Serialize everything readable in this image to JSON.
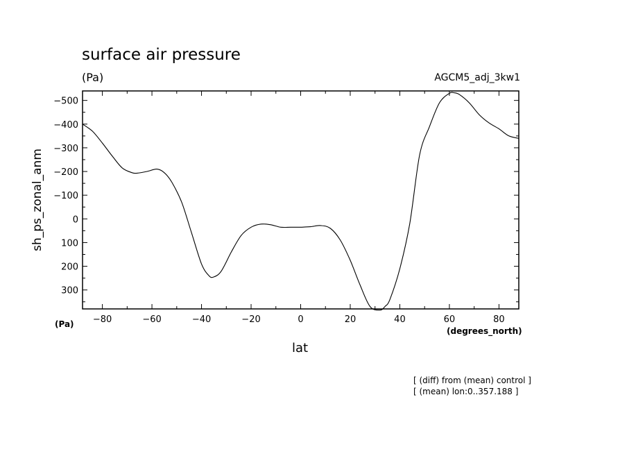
{
  "chart_data": {
    "type": "line",
    "title": "surface air pressure",
    "units_label": "(Pa)",
    "run_label": "AGCM5_adj_3kw1",
    "xlabel": "lat",
    "xunits": "(degrees_north)",
    "ylabel": "sh_ps_zonal_anm",
    "yunits": "(Pa)",
    "xlim": [
      -88,
      88
    ],
    "ylim": [
      -540,
      380
    ],
    "y_inverted": true,
    "xticks": [
      -80,
      -60,
      -40,
      -20,
      0,
      20,
      40,
      60,
      80
    ],
    "xtick_labels": [
      "−80",
      "−60",
      "−40",
      "−20",
      "0",
      "20",
      "40",
      "60",
      "80"
    ],
    "yticks": [
      -500,
      -400,
      -300,
      -200,
      -100,
      0,
      100,
      200,
      300
    ],
    "ytick_labels": [
      "−500",
      "−400",
      "−300",
      "−200",
      "−100",
      "0",
      "100",
      "200",
      "300"
    ],
    "grid": false,
    "series": [
      {
        "x": [
          -88,
          -84,
          -80,
          -76,
          -72,
          -68,
          -66,
          -62,
          -58,
          -55,
          -52,
          -48,
          -44,
          -40,
          -37,
          -35,
          -32,
          -28,
          -24,
          -20,
          -16,
          -12,
          -8,
          -4,
          0,
          4,
          8,
          12,
          16,
          20,
          24,
          28,
          32,
          34,
          36,
          40,
          44,
          48,
          52,
          56,
          60,
          62,
          64,
          68,
          72,
          76,
          80,
          84,
          88
        ],
        "y": [
          -400,
          -370,
          -320,
          -265,
          -215,
          -195,
          -193,
          -200,
          -210,
          -195,
          -155,
          -70,
          60,
          190,
          240,
          245,
          220,
          140,
          70,
          35,
          22,
          25,
          35,
          35,
          35,
          33,
          28,
          40,
          90,
          175,
          280,
          370,
          385,
          370,
          340,
          210,
          20,
          -270,
          -390,
          -490,
          -530,
          -532,
          -525,
          -490,
          -440,
          -405,
          -380,
          -350,
          -340
        ]
      }
    ],
    "annotations": [
      "[ (diff) from (mean) control ]",
      "[ (mean) lon:0..357.188 ]"
    ]
  }
}
